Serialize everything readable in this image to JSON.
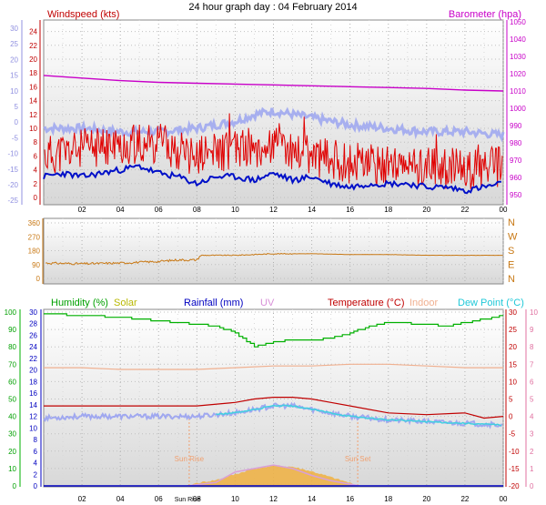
{
  "header": {
    "title": "24 hour graph day : 04 February 2014"
  },
  "colors": {
    "wind": "#e00000",
    "wind_dir": "#c87814",
    "barometer": "#c800c8",
    "humidity": "#00b000",
    "solar": "#c8c800",
    "rainfall": "#0000c0",
    "uv": "#d8a0d8",
    "temperature": "#c00000",
    "indoor": "#f0b090",
    "dewpoint": "#40d0e0",
    "avg_wind": "#0010c8",
    "gust_band": "#a0a8f0",
    "solar_fill": "#f0b040",
    "suntime": "#f0a070"
  },
  "chart_data": [
    {
      "type": "line",
      "name": "wind-and-pressure",
      "labels": {
        "left": "Windspeed (kts)",
        "right": "Barometer (hpa)"
      },
      "x_ticks": [
        "02",
        "04",
        "06",
        "08",
        "10",
        "12",
        "14",
        "16",
        "18",
        "20",
        "22",
        "00"
      ],
      "y_left_ticks": [
        "24",
        "22",
        "20",
        "18",
        "16",
        "14",
        "12",
        "10",
        "8",
        "6",
        "4",
        "2",
        "0"
      ],
      "y_left_range": [
        0,
        25
      ],
      "y_far_left_ticks": [
        "30",
        "25",
        "20",
        "15",
        "10",
        "5",
        "0",
        "-5",
        "-10",
        "-15",
        "-20",
        "-25"
      ],
      "y_right_ticks": [
        "1050",
        "1040",
        "1030",
        "1020",
        "1010",
        "1000",
        "990",
        "980",
        "970",
        "960",
        "950"
      ],
      "y_right_range": [
        945,
        1052
      ],
      "barometer": [
        [
          0,
          1019
        ],
        [
          2,
          1017.5
        ],
        [
          4,
          1016
        ],
        [
          6,
          1015
        ],
        [
          8,
          1014.5
        ],
        [
          10,
          1014
        ],
        [
          12,
          1013.5
        ],
        [
          14,
          1013
        ],
        [
          16,
          1012.5
        ],
        [
          18,
          1012
        ],
        [
          20,
          1011.5
        ],
        [
          22,
          1010.5
        ],
        [
          24,
          1010
        ]
      ],
      "gust_band_temp": [
        [
          0,
          10
        ],
        [
          2,
          10
        ],
        [
          4,
          9.5
        ],
        [
          6,
          9.5
        ],
        [
          8,
          10
        ],
        [
          10,
          11
        ],
        [
          11,
          12
        ],
        [
          12,
          12.5
        ],
        [
          13,
          12
        ],
        [
          14,
          11.5
        ],
        [
          16,
          10.5
        ],
        [
          18,
          10
        ],
        [
          20,
          9.5
        ],
        [
          22,
          9.5
        ],
        [
          24,
          9
        ]
      ],
      "wind_gust_profile": [
        [
          0,
          6
        ],
        [
          2,
          7
        ],
        [
          4,
          7.5
        ],
        [
          6,
          8
        ],
        [
          8,
          6
        ],
        [
          10,
          7
        ],
        [
          12,
          7.5
        ],
        [
          14,
          6
        ],
        [
          16,
          5
        ],
        [
          18,
          4.5
        ],
        [
          20,
          4.5
        ],
        [
          22,
          4
        ],
        [
          24,
          4.5
        ]
      ],
      "avg_wind": [
        [
          0,
          3
        ],
        [
          1,
          3.5
        ],
        [
          2,
          3
        ],
        [
          3,
          3.5
        ],
        [
          4,
          4
        ],
        [
          5,
          4.5
        ],
        [
          6,
          3.5
        ],
        [
          7,
          3
        ],
        [
          8,
          2
        ],
        [
          9,
          3
        ],
        [
          10,
          3
        ],
        [
          11,
          2.5
        ],
        [
          12,
          3.5
        ],
        [
          13,
          2.5
        ],
        [
          14,
          3
        ],
        [
          15,
          2
        ],
        [
          16,
          1.5
        ],
        [
          17,
          2
        ],
        [
          18,
          2
        ],
        [
          19,
          2
        ],
        [
          20,
          1.5
        ],
        [
          21,
          1.5
        ],
        [
          22,
          1
        ],
        [
          23,
          1.5
        ],
        [
          24,
          2
        ]
      ]
    },
    {
      "type": "line",
      "name": "wind-direction",
      "x_ticks": [
        "02",
        "04",
        "06",
        "08",
        "10",
        "12",
        "14",
        "16",
        "18",
        "20",
        "22",
        "00"
      ],
      "y_ticks": [
        "360",
        "270",
        "180",
        "90",
        "0"
      ],
      "y_range": [
        0,
        360
      ],
      "compass": [
        "N",
        "W",
        "S",
        "E",
        "N"
      ],
      "series": [
        [
          0,
          100
        ],
        [
          2,
          95
        ],
        [
          4,
          100
        ],
        [
          6,
          110
        ],
        [
          7,
          120
        ],
        [
          8,
          120
        ],
        [
          8.2,
          150
        ],
        [
          10,
          150
        ],
        [
          12,
          160
        ],
        [
          14,
          160
        ],
        [
          16,
          155
        ],
        [
          18,
          155
        ],
        [
          20,
          150
        ],
        [
          22,
          150
        ],
        [
          24,
          150
        ]
      ]
    },
    {
      "type": "line",
      "name": "humidity-temperature-rain",
      "labels": {
        "humidity": "Humidity  (%)",
        "solar": "Solar",
        "rainfall": "Rainfall (mm)",
        "uv": "UV",
        "temperature": "Temperature (°C)",
        "indoor": "Indoor",
        "dewpoint": "Dew Point (°C)"
      },
      "x_ticks": [
        "02",
        "04",
        "06",
        "08",
        "10",
        "12",
        "14",
        "16",
        "18",
        "20",
        "22",
        "00"
      ],
      "y_humidity_ticks": [
        "100",
        "90",
        "80",
        "70",
        "60",
        "50",
        "40",
        "30",
        "20",
        "10",
        "0"
      ],
      "y_rain_ticks": [
        "30",
        "28",
        "26",
        "24",
        "22",
        "20",
        "18",
        "16",
        "14",
        "12",
        "10",
        "8",
        "6",
        "4",
        "2",
        "0"
      ],
      "y_temp_ticks": [
        "30",
        "25",
        "20",
        "15",
        "10",
        "5",
        "0",
        "-5",
        "-10",
        "-15",
        "-20"
      ],
      "y_uv_ticks": [
        "10",
        "9",
        "8",
        "7",
        "6",
        "5",
        "4",
        "3",
        "2",
        "1",
        "0"
      ],
      "sun_rise_label": "Sun Rise",
      "sun_set_label": "Sun Set",
      "sun_rise_tick": "Sun Rise",
      "sun_set_tick": "Sun Set",
      "humidity": [
        [
          0,
          99
        ],
        [
          2,
          98
        ],
        [
          4,
          97
        ],
        [
          6,
          95
        ],
        [
          8,
          93
        ],
        [
          9,
          92
        ],
        [
          10,
          88
        ],
        [
          11,
          80
        ],
        [
          12,
          83
        ],
        [
          13,
          84
        ],
        [
          14,
          84
        ],
        [
          15,
          85
        ],
        [
          16,
          88
        ],
        [
          17,
          92
        ],
        [
          18,
          94
        ],
        [
          20,
          93
        ],
        [
          21,
          92
        ],
        [
          22,
          94
        ],
        [
          23,
          96
        ],
        [
          24,
          98
        ]
      ],
      "temperature": [
        [
          0,
          3
        ],
        [
          2,
          3
        ],
        [
          4,
          3
        ],
        [
          6,
          3
        ],
        [
          8,
          3
        ],
        [
          10,
          4
        ],
        [
          11,
          5
        ],
        [
          12,
          5.5
        ],
        [
          13,
          5.5
        ],
        [
          14,
          5
        ],
        [
          15,
          4
        ],
        [
          16,
          3
        ],
        [
          18,
          1
        ],
        [
          20,
          0.5
        ],
        [
          22,
          1
        ],
        [
          23,
          -0.5
        ],
        [
          24,
          0
        ]
      ],
      "dewpoint": [
        [
          0,
          -0.5
        ],
        [
          2,
          0
        ],
        [
          4,
          0
        ],
        [
          6,
          0
        ],
        [
          8,
          0
        ],
        [
          10,
          1
        ],
        [
          11,
          2
        ],
        [
          12,
          3
        ],
        [
          13,
          3
        ],
        [
          14,
          2
        ],
        [
          15,
          1
        ],
        [
          16,
          0
        ],
        [
          18,
          -1
        ],
        [
          20,
          -1.5
        ],
        [
          22,
          -2
        ],
        [
          24,
          -2.5
        ]
      ],
      "indoor": [
        [
          0,
          14
        ],
        [
          2,
          14
        ],
        [
          4,
          13.5
        ],
        [
          6,
          13.5
        ],
        [
          8,
          13.5
        ],
        [
          10,
          14
        ],
        [
          12,
          14.5
        ],
        [
          14,
          14.5
        ],
        [
          16,
          15
        ],
        [
          18,
          15
        ],
        [
          20,
          14.5
        ],
        [
          22,
          14
        ],
        [
          24,
          14
        ]
      ],
      "solar_fill": [
        [
          7.5,
          0
        ],
        [
          8,
          0.5
        ],
        [
          9,
          1
        ],
        [
          10,
          2
        ],
        [
          11,
          3
        ],
        [
          12,
          3.5
        ],
        [
          13,
          3.3
        ],
        [
          14,
          2.5
        ],
        [
          15,
          1.5
        ],
        [
          16,
          0.5
        ],
        [
          16.5,
          0
        ]
      ],
      "uv": [
        [
          7.5,
          0
        ],
        [
          9,
          0.2
        ],
        [
          10,
          0.8
        ],
        [
          11,
          1.0
        ],
        [
          12,
          1.2
        ],
        [
          13,
          1.0
        ],
        [
          14,
          0.6
        ],
        [
          15,
          0.3
        ],
        [
          16.5,
          0
        ]
      ],
      "rainfall": [
        [
          0,
          0
        ],
        [
          24,
          0
        ]
      ]
    }
  ]
}
